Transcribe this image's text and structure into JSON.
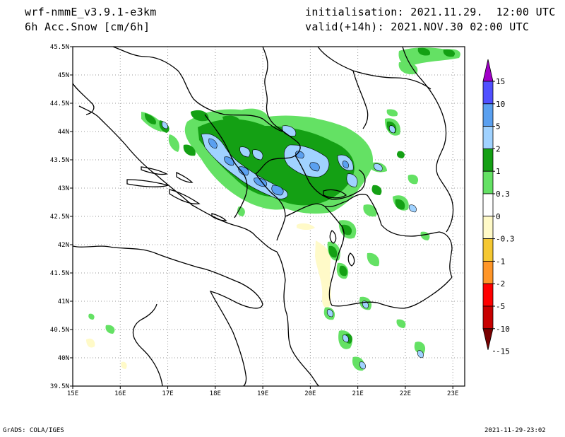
{
  "header": {
    "model": "wrf-nmmE_v3.9.1-e3km",
    "field": "6h Acc.Snow [cm/6h]",
    "init": "initialisation: 2021.11.29.  12:00 UTC",
    "valid": "valid(+14h): 2021.NOV.30 02:00 UTC"
  },
  "footer": {
    "credit": "GrADS: COLA/IGES",
    "timestamp": "2021-11-29-23:02"
  },
  "axes": {
    "lon_labels": [
      "15E",
      "16E",
      "17E",
      "18E",
      "19E",
      "20E",
      "21E",
      "22E",
      "23E"
    ],
    "lat_labels": [
      "45.5N",
      "45N",
      "44.5N",
      "44N",
      "43.5N",
      "43N",
      "42.5N",
      "42N",
      "41.5N",
      "41N",
      "40.5N",
      "40N",
      "39.5N"
    ],
    "lon_range": [
      15,
      23.25
    ],
    "lat_range": [
      39.5,
      45.5
    ]
  },
  "colorbar": {
    "levels": [
      "15",
      "10",
      "5",
      "2",
      "1",
      "0.3",
      "0",
      "-0.3",
      "-1",
      "-2",
      "-5",
      "-10",
      "-15"
    ],
    "colors": [
      "#a000c8",
      "#5050ff",
      "#5aa0f0",
      "#a0d2ff",
      "#14a014",
      "#64e164",
      "#ffffff",
      "#fffac8",
      "#f5c832",
      "#ff9628",
      "#ff0000",
      "#c80000",
      "#780000"
    ]
  },
  "snow_colors": {
    "light": "#64e164",
    "medium": "#14a014",
    "heavy": "#a0d2ff",
    "very_heavy": "#5aa0f0",
    "negative": "#fffac8"
  }
}
